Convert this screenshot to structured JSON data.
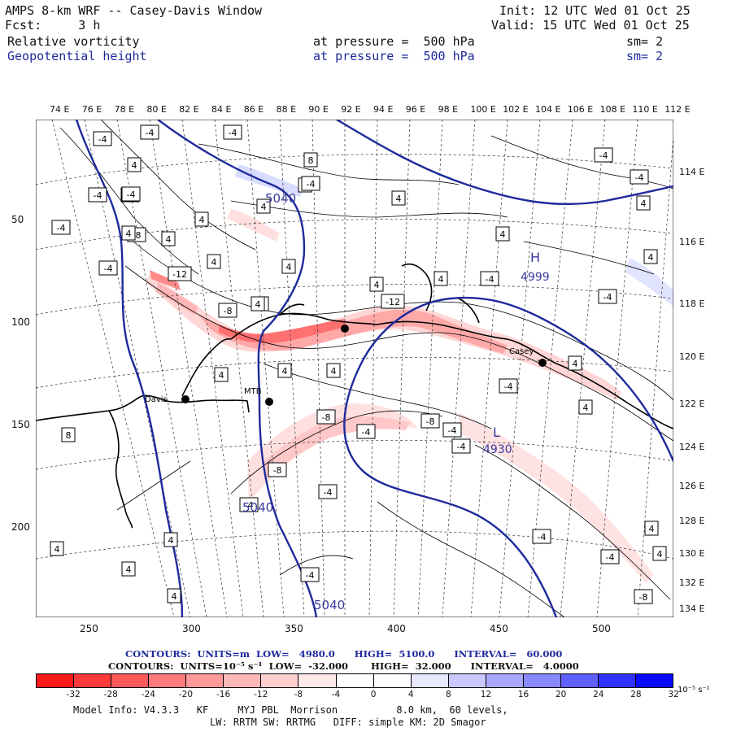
{
  "header": {
    "title": "AMPS 8-km WRF -- Casey-Davis Window",
    "fcst": "Fcst:     3 h",
    "init": "Init: 12 UTC Wed 01 Oct 25",
    "valid": "Valid: 15 UTC Wed 01 Oct 25",
    "field1_name": "Relative vorticity",
    "field1_level": "at pressure =  500 hPa",
    "field1_sm": "sm= 2",
    "field2_name": "Geopotential height",
    "field2_level": "at pressure =  500 hPa",
    "field2_sm": "sm= 2"
  },
  "top_lon_labels": [
    "74 E",
    "76 E",
    "78 E",
    "80 E",
    "82 E",
    "84 E",
    "86 E",
    "88 E",
    "90 E",
    "92 E",
    "94 E",
    "96 E",
    "98 E",
    "100 E",
    "102 E",
    "104 E",
    "106 E",
    "108 E",
    "110 E",
    "112 E"
  ],
  "right_lon_labels": [
    "114 E",
    "116 E",
    "118 E",
    "120 E",
    "122 E",
    "124 E",
    "126 E",
    "128 E",
    "130 E",
    "132 E",
    "134 E"
  ],
  "y_axis_labels": [
    "50",
    "100",
    "150",
    "200"
  ],
  "x_axis_labels": [
    "250",
    "300",
    "350",
    "400",
    "450",
    "500"
  ],
  "map_labels": {
    "high_letter": "H",
    "high_value": "4999",
    "low_letter": "L",
    "low_value": "4930",
    "height_5040_a": "5040",
    "height_5040_b": "5040",
    "height_5040_c": "5040",
    "stations": [
      "Davis",
      "Casey",
      "MTB"
    ]
  },
  "vort_boxes": [
    "-4",
    "-4",
    "-4",
    "4",
    "-4",
    "8",
    "-4",
    "-4",
    "4",
    "-4",
    "-8",
    "4",
    "4",
    "-4",
    "-12",
    "4",
    "4",
    "4",
    "4",
    "-4",
    "-8",
    "4",
    "-4",
    "4",
    "4",
    "-12",
    "4",
    "4",
    "4",
    "4",
    "-4",
    "-8",
    "-4",
    "-8",
    "4",
    "-4",
    "4",
    "-4",
    "-8",
    "-4",
    "-4",
    "4",
    "4",
    "-4",
    "4",
    "-4",
    "-4",
    "4",
    "-4",
    "-4",
    "4",
    "-8",
    "-4",
    "4",
    "4",
    "8",
    "4",
    "4",
    "4"
  ],
  "contours_line1": {
    "label": "CONTOURS:",
    "units": "UNITS=m",
    "low": "LOW=   4980.0",
    "high": "HIGH=  5100.0",
    "interval": "INTERVAL=   60.000"
  },
  "contours_line2": {
    "label": "CONTOURS:",
    "units": "UNITS=10⁻⁵ s⁻¹",
    "low": "LOW=  -32.000",
    "high": "HIGH=  32.000",
    "interval": "INTERVAL=   4.0000"
  },
  "colorbar": {
    "colors": [
      "#ff1a1a",
      "#ff3a3a",
      "#ff5a5a",
      "#ff7a7a",
      "#ff9a9a",
      "#ffb8b8",
      "#ffd0d0",
      "#ffe8e8",
      "#ffffff",
      "#ffffff",
      "#e8e8ff",
      "#c8c8ff",
      "#a8a8ff",
      "#8888ff",
      "#6060ff",
      "#3030ff",
      "#0a0aff"
    ],
    "labels": [
      "-32",
      "-28",
      "-24",
      "-20",
      "-16",
      "-12",
      "-8",
      "-4",
      "0",
      "4",
      "8",
      "12",
      "16",
      "20",
      "24",
      "28",
      "32"
    ],
    "unit": "10⁻⁵ s⁻¹"
  },
  "footer": {
    "line1": "Model Info: V4.3.3   KF     MYJ PBL  Morrison          8.0 km,  60 levels,",
    "line2": "LW: RRTM SW: RRTMG   DIFF: simple KM: 2D Smagor"
  }
}
